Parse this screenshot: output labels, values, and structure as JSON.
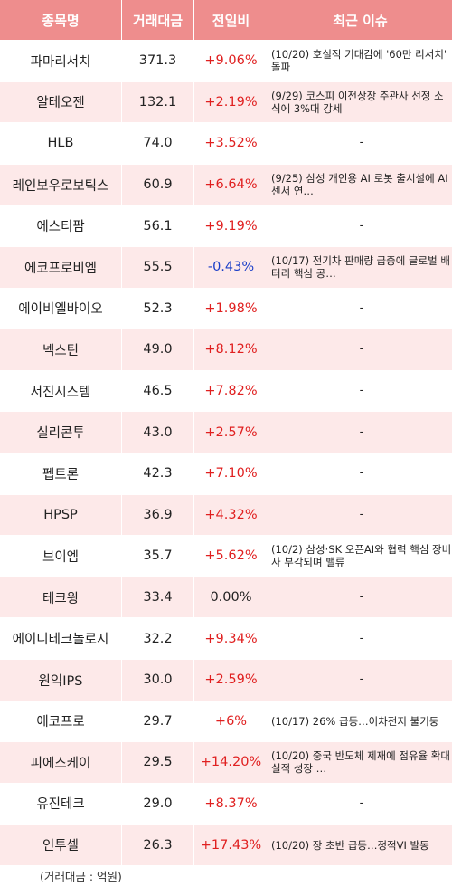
{
  "headers": [
    "종목명",
    "거래대금",
    "전일비",
    "최근 이슈"
  ],
  "rows": [
    {
      "name": "파마리서치",
      "volume": "371.3",
      "change": "+9.06%",
      "dir": "up",
      "issue": "(10/20) 호실적 기대감에 '60만 리서치' 돌파"
    },
    {
      "name": "알테오젠",
      "volume": "132.1",
      "change": "+2.19%",
      "dir": "up",
      "issue": "(9/29) 코스피 이전상장 주관사 선정 소식에 3%대 강세"
    },
    {
      "name": "HLB",
      "volume": "74.0",
      "change": "+3.52%",
      "dir": "up",
      "issue": "-"
    },
    {
      "name": "레인보우로보틱스",
      "volume": "60.9",
      "change": "+6.64%",
      "dir": "up",
      "issue": "(9/25) 삼성 개인용 AI 로봇 출시설에 AI센서 연…"
    },
    {
      "name": "에스티팜",
      "volume": "56.1",
      "change": "+9.19%",
      "dir": "up",
      "issue": "-"
    },
    {
      "name": "에코프로비엠",
      "volume": "55.5",
      "change": "-0.43%",
      "dir": "down",
      "issue": "(10/17) 전기차 판매량 급증에 글로벌 배터리 핵심 공…"
    },
    {
      "name": "에이비엘바이오",
      "volume": "52.3",
      "change": "+1.98%",
      "dir": "up",
      "issue": "-"
    },
    {
      "name": "넥스틴",
      "volume": "49.0",
      "change": "+8.12%",
      "dir": "up",
      "issue": "-"
    },
    {
      "name": "서진시스템",
      "volume": "46.5",
      "change": "+7.82%",
      "dir": "up",
      "issue": "-"
    },
    {
      "name": "실리콘투",
      "volume": "43.0",
      "change": "+2.57%",
      "dir": "up",
      "issue": "-"
    },
    {
      "name": "펩트론",
      "volume": "42.3",
      "change": "+7.10%",
      "dir": "up",
      "issue": "-"
    },
    {
      "name": "HPSP",
      "volume": "36.9",
      "change": "+4.32%",
      "dir": "up",
      "issue": "-"
    },
    {
      "name": "브이엠",
      "volume": "35.7",
      "change": "+5.62%",
      "dir": "up",
      "issue": "(10/2) 삼성·SK 오픈AI와 협력 핵심 장비사 부각되며 밸류"
    },
    {
      "name": "테크윙",
      "volume": "33.4",
      "change": "0.00%",
      "dir": "flat",
      "issue": "-"
    },
    {
      "name": "에이디테크놀로지",
      "volume": "32.2",
      "change": "+9.34%",
      "dir": "up",
      "issue": "-"
    },
    {
      "name": "원익IPS",
      "volume": "30.0",
      "change": "+2.59%",
      "dir": "up",
      "issue": "-"
    },
    {
      "name": "에코프로",
      "volume": "29.7",
      "change": "+6%",
      "dir": "up",
      "issue": "(10/17) 26% 급등…이차전지 불기둥"
    },
    {
      "name": "피에스케이",
      "volume": "29.5",
      "change": "+14.20%",
      "dir": "up",
      "issue": "(10/20) 중국 반도체 제재에 점유율 확대 실적 성장 …"
    },
    {
      "name": "유진테크",
      "volume": "29.0",
      "change": "+8.37%",
      "dir": "up",
      "issue": "-"
    },
    {
      "name": "인투셀",
      "volume": "26.3",
      "change": "+17.43%",
      "dir": "up",
      "issue": "(10/20) 장 초반 급등…정적VI 발동"
    }
  ],
  "footnote": "(거래대금 : 억원)",
  "colors": {
    "header_bg": "#ee8d8d",
    "stripe": "#fde9e9",
    "up": "#e02020",
    "down": "#1a3ec8"
  }
}
